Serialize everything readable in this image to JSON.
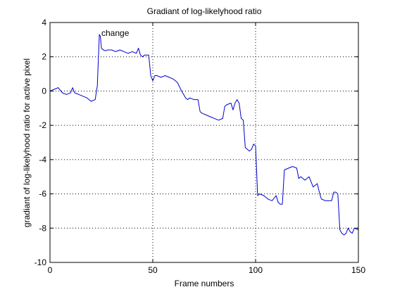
{
  "chart_data": {
    "type": "line",
    "title": "Gradiant of log-likelyhood ratio",
    "xlabel": "Frame numbers",
    "ylabel": "gradiant of log-likelyhood ratio for active pixel",
    "xlim": [
      0,
      150
    ],
    "ylim": [
      -10,
      4
    ],
    "xticks": [
      0,
      50,
      100,
      150
    ],
    "yticks": [
      -10,
      -8,
      -6,
      -4,
      -2,
      0,
      2,
      4
    ],
    "grid": true,
    "grid_style": "dotted",
    "line_color": "#0000cc",
    "annotation": {
      "text": "change",
      "x": 25,
      "y": 3.3
    },
    "series": [
      {
        "x": [
          0,
          2,
          4,
          6,
          8,
          10,
          11,
          12,
          14,
          16,
          18,
          20,
          22,
          23,
          24,
          24.5,
          25,
          26,
          27,
          28,
          30,
          32,
          34,
          36,
          38,
          40,
          42,
          43,
          44,
          45,
          46,
          48,
          49,
          50,
          51,
          52,
          54,
          56,
          58,
          60,
          62,
          64,
          66,
          67,
          68,
          70,
          72,
          73,
          74,
          76,
          78,
          80,
          82,
          84,
          85,
          86,
          88,
          89,
          90,
          91,
          92,
          93,
          94,
          95,
          96,
          97,
          98,
          99,
          100,
          101,
          102,
          104,
          106,
          108,
          110,
          111,
          112,
          113,
          114,
          116,
          118,
          120,
          121,
          122,
          124,
          126,
          128,
          130,
          131,
          132,
          134,
          136,
          137,
          138,
          139,
          140,
          141,
          142,
          143,
          144,
          145,
          146,
          147,
          148,
          150
        ],
        "y": [
          0,
          0.1,
          0.2,
          -0.1,
          -0.2,
          -0.1,
          0.2,
          -0.1,
          -0.2,
          -0.3,
          -0.4,
          -0.6,
          -0.5,
          0.3,
          3.3,
          3.2,
          2.5,
          2.4,
          2.35,
          2.4,
          2.4,
          2.3,
          2.4,
          2.3,
          2.2,
          2.3,
          2.2,
          2.5,
          2.1,
          2.0,
          2.1,
          2.1,
          0.9,
          0.6,
          0.9,
          0.9,
          0.8,
          0.9,
          0.8,
          0.7,
          0.5,
          0.0,
          -0.4,
          -0.5,
          -0.4,
          -0.5,
          -0.5,
          -1.2,
          -1.3,
          -1.4,
          -1.5,
          -1.6,
          -1.7,
          -1.6,
          -0.9,
          -0.8,
          -0.7,
          -1.1,
          -0.7,
          -0.5,
          -0.7,
          -1.6,
          -1.7,
          -3.3,
          -3.4,
          -3.5,
          -3.4,
          -3.1,
          -3.2,
          -6.1,
          -6.0,
          -6.1,
          -6.3,
          -6.4,
          -6.1,
          -6.5,
          -6.6,
          -6.6,
          -4.6,
          -4.5,
          -4.4,
          -4.5,
          -5.1,
          -5.0,
          -5.2,
          -5.0,
          -5.6,
          -5.4,
          -5.9,
          -6.3,
          -6.4,
          -6.4,
          -6.4,
          -5.9,
          -5.9,
          -6.0,
          -8.1,
          -8.3,
          -8.4,
          -8.3,
          -8.0,
          -8.2,
          -8.3,
          -8.0,
          -8.1
        ]
      }
    ]
  }
}
